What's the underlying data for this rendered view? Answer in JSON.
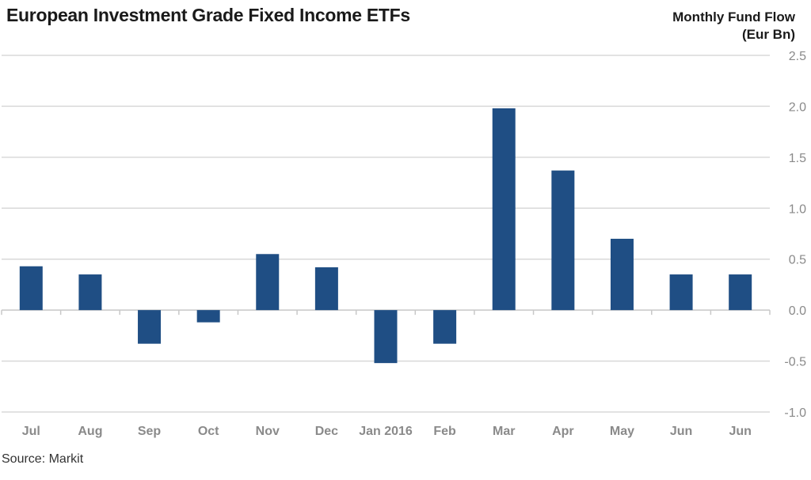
{
  "title": "European Investment Grade Fixed Income ETFs",
  "y_axis_title_line1": "Monthly Fund Flow",
  "y_axis_title_line2": "(Eur Bn)",
  "source": "Source: Markit",
  "colors": {
    "bar": "#1f4e84",
    "grid": "#d9d9d9",
    "tick_text": "#8a8a8a"
  },
  "chart_data": {
    "type": "bar",
    "title": "European Investment Grade Fixed Income ETFs",
    "ylabel": "Monthly Fund Flow (Eur Bn)",
    "xlabel": "",
    "categories": [
      "Jul",
      "Aug",
      "Sep",
      "Oct",
      "Nov",
      "Dec",
      "Jan 2016",
      "Feb",
      "Mar",
      "Apr",
      "May",
      "Jun",
      "Jun"
    ],
    "values": [
      0.43,
      0.35,
      -0.33,
      -0.12,
      0.55,
      0.42,
      -0.52,
      -0.33,
      1.98,
      1.37,
      0.7,
      0.35,
      0.35
    ],
    "ylim": [
      -1.0,
      2.5
    ],
    "yticks": [
      "2.5",
      "2.0",
      "1.5",
      "1.0",
      "0.5",
      "0.0",
      "-0.5",
      "-1.0"
    ],
    "ytick_values": [
      2.5,
      2.0,
      1.5,
      1.0,
      0.5,
      0.0,
      -0.5,
      -1.0
    ],
    "grid": true,
    "legend": "none",
    "y_axis_side": "right"
  }
}
